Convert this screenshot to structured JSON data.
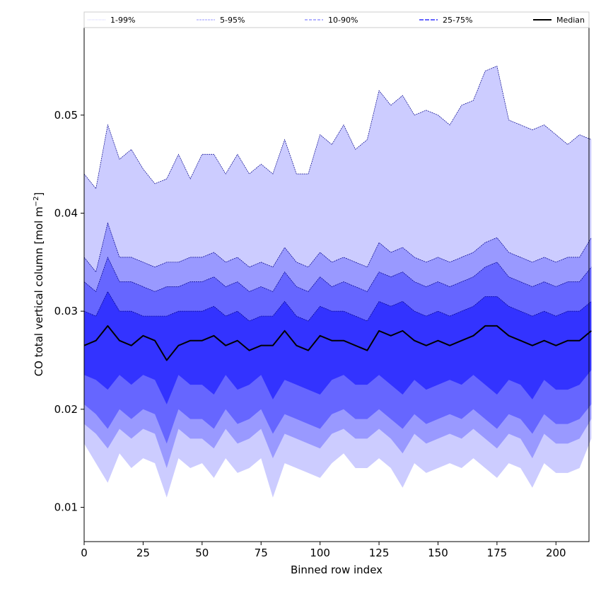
{
  "chart_data": {
    "type": "area",
    "xlabel": "Binned row index",
    "ylabel_main": "CO total vertical column [mol m",
    "ylabel_sup": "−2",
    "ylabel_end": "]",
    "xlim": [
      0,
      214
    ],
    "ylim": [
      0.0065,
      0.059
    ],
    "x_ticks": [
      0,
      25,
      50,
      75,
      100,
      125,
      150,
      175,
      200
    ],
    "y_ticks": [
      0.01,
      0.02,
      0.03,
      0.04,
      0.05
    ],
    "y_tick_labels": [
      "0.01",
      "0.02",
      "0.03",
      "0.04",
      "0.05"
    ],
    "grid": false,
    "legend_position": "top",
    "legend": [
      "1-99%",
      "5-95%",
      "10-90%",
      "25-75%",
      "Median"
    ],
    "colors": {
      "band_1_99": "#ccccff",
      "band_5_95": "#9999ff",
      "band_10_90": "#6666ff",
      "band_25_75": "#3333ff",
      "edge": "#00008b",
      "median": "#000000"
    },
    "x_step": 5,
    "series": [
      {
        "name": "1-99%",
        "lower": [
          0.0165,
          0.0145,
          0.0125,
          0.0155,
          0.014,
          0.015,
          0.0145,
          0.011,
          0.015,
          0.014,
          0.0145,
          0.013,
          0.015,
          0.0135,
          0.014,
          0.015,
          0.011,
          0.0145,
          0.014,
          0.0135,
          0.013,
          0.0145,
          0.0155,
          0.014,
          0.014,
          0.015,
          0.014,
          0.012,
          0.0145,
          0.0135,
          0.014,
          0.0145,
          0.014,
          0.015,
          0.014,
          0.013,
          0.0145,
          0.014,
          0.012,
          0.0145,
          0.0135,
          0.0135,
          0.014,
          0.017
        ],
        "upper": [
          0.044,
          0.0425,
          0.049,
          0.0455,
          0.0465,
          0.0445,
          0.043,
          0.0435,
          0.046,
          0.0435,
          0.046,
          0.046,
          0.044,
          0.046,
          0.044,
          0.045,
          0.044,
          0.0475,
          0.044,
          0.044,
          0.048,
          0.047,
          0.049,
          0.0465,
          0.0475,
          0.0525,
          0.051,
          0.052,
          0.05,
          0.0505,
          0.05,
          0.049,
          0.051,
          0.0515,
          0.0545,
          0.055,
          0.0495,
          0.049,
          0.0485,
          0.049,
          0.048,
          0.047,
          0.048,
          0.0475
        ]
      },
      {
        "name": "5-95%",
        "lower": [
          0.0185,
          0.0175,
          0.016,
          0.018,
          0.017,
          0.018,
          0.0175,
          0.014,
          0.018,
          0.017,
          0.017,
          0.016,
          0.018,
          0.0165,
          0.017,
          0.018,
          0.015,
          0.0175,
          0.017,
          0.0165,
          0.016,
          0.0175,
          0.018,
          0.017,
          0.017,
          0.018,
          0.017,
          0.0155,
          0.0175,
          0.0165,
          0.017,
          0.0175,
          0.017,
          0.018,
          0.017,
          0.016,
          0.0175,
          0.017,
          0.015,
          0.0175,
          0.0165,
          0.0165,
          0.017,
          0.019
        ],
        "upper": [
          0.0355,
          0.034,
          0.039,
          0.0355,
          0.0355,
          0.035,
          0.0345,
          0.035,
          0.035,
          0.0355,
          0.0355,
          0.036,
          0.035,
          0.0355,
          0.0345,
          0.035,
          0.0345,
          0.0365,
          0.035,
          0.0345,
          0.036,
          0.035,
          0.0355,
          0.035,
          0.0345,
          0.037,
          0.036,
          0.0365,
          0.0355,
          0.035,
          0.0355,
          0.035,
          0.0355,
          0.036,
          0.037,
          0.0375,
          0.036,
          0.0355,
          0.035,
          0.0355,
          0.035,
          0.0355,
          0.0355,
          0.0375
        ]
      },
      {
        "name": "10-90%",
        "lower": [
          0.0205,
          0.0195,
          0.018,
          0.02,
          0.019,
          0.02,
          0.0195,
          0.0165,
          0.02,
          0.019,
          0.019,
          0.018,
          0.02,
          0.0185,
          0.019,
          0.02,
          0.0175,
          0.0195,
          0.019,
          0.0185,
          0.018,
          0.0195,
          0.02,
          0.019,
          0.019,
          0.02,
          0.019,
          0.018,
          0.0195,
          0.0185,
          0.019,
          0.0195,
          0.019,
          0.02,
          0.019,
          0.018,
          0.0195,
          0.019,
          0.0175,
          0.0195,
          0.0185,
          0.0185,
          0.019,
          0.0205
        ],
        "upper": [
          0.033,
          0.032,
          0.0355,
          0.033,
          0.033,
          0.0325,
          0.032,
          0.0325,
          0.0325,
          0.033,
          0.033,
          0.0335,
          0.0325,
          0.033,
          0.032,
          0.0325,
          0.032,
          0.034,
          0.0325,
          0.032,
          0.0335,
          0.0325,
          0.033,
          0.0325,
          0.032,
          0.034,
          0.0335,
          0.034,
          0.033,
          0.0325,
          0.033,
          0.0325,
          0.033,
          0.0335,
          0.0345,
          0.035,
          0.0335,
          0.033,
          0.0325,
          0.033,
          0.0325,
          0.033,
          0.033,
          0.0345
        ]
      },
      {
        "name": "25-75%",
        "lower": [
          0.0235,
          0.023,
          0.022,
          0.0235,
          0.0225,
          0.0235,
          0.023,
          0.0205,
          0.0235,
          0.0225,
          0.0225,
          0.0215,
          0.0235,
          0.022,
          0.0225,
          0.0235,
          0.021,
          0.023,
          0.0225,
          0.022,
          0.0215,
          0.023,
          0.0235,
          0.0225,
          0.0225,
          0.0235,
          0.0225,
          0.0215,
          0.023,
          0.022,
          0.0225,
          0.023,
          0.0225,
          0.0235,
          0.0225,
          0.0215,
          0.023,
          0.0225,
          0.021,
          0.023,
          0.022,
          0.022,
          0.0225,
          0.024
        ],
        "upper": [
          0.03,
          0.0295,
          0.032,
          0.03,
          0.03,
          0.0295,
          0.0295,
          0.0295,
          0.03,
          0.03,
          0.03,
          0.0305,
          0.0295,
          0.03,
          0.029,
          0.0295,
          0.0295,
          0.031,
          0.0295,
          0.029,
          0.0305,
          0.03,
          0.03,
          0.0295,
          0.029,
          0.031,
          0.0305,
          0.031,
          0.03,
          0.0295,
          0.03,
          0.0295,
          0.03,
          0.0305,
          0.0315,
          0.0315,
          0.0305,
          0.03,
          0.0295,
          0.03,
          0.0295,
          0.03,
          0.03,
          0.031
        ]
      },
      {
        "name": "Median",
        "values": [
          0.0265,
          0.027,
          0.0285,
          0.027,
          0.0265,
          0.0275,
          0.027,
          0.025,
          0.0265,
          0.027,
          0.027,
          0.0275,
          0.0265,
          0.027,
          0.026,
          0.0265,
          0.0265,
          0.028,
          0.0265,
          0.026,
          0.0275,
          0.027,
          0.027,
          0.0265,
          0.026,
          0.028,
          0.0275,
          0.028,
          0.027,
          0.0265,
          0.027,
          0.0265,
          0.027,
          0.0275,
          0.0285,
          0.0285,
          0.0275,
          0.027,
          0.0265,
          0.027,
          0.0265,
          0.027,
          0.027,
          0.028
        ]
      }
    ]
  }
}
